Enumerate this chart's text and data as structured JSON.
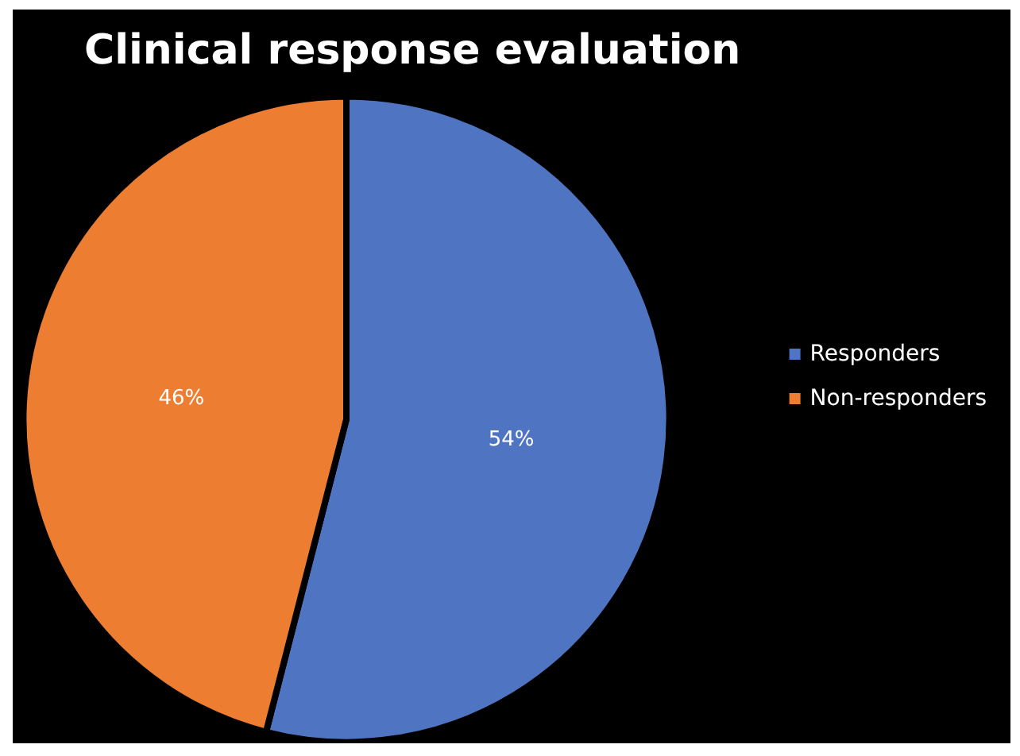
{
  "chart_data": {
    "type": "pie",
    "title": "Clinical response evaluation",
    "categories": [
      "Responders",
      "Non-responders"
    ],
    "values": [
      54,
      46
    ],
    "colors": [
      "#4f74c2",
      "#ed7d31"
    ],
    "value_labels": [
      "54%",
      "46%"
    ],
    "legend": "right"
  }
}
